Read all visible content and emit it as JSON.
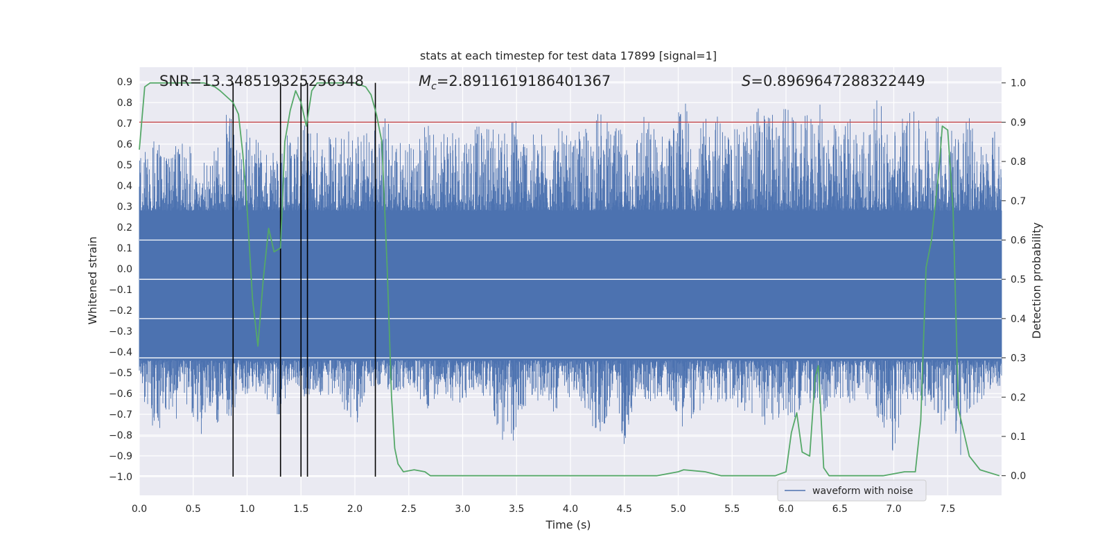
{
  "chart_data": {
    "type": "line",
    "title": "stats at each timestep for test data 17899 [signal=1]",
    "xlabel": "Time (s)",
    "ylabel": "Whitened strain",
    "y2label": "Detection probability",
    "xlim": [
      0.0,
      8.0
    ],
    "ylim": [
      -1.09,
      0.97
    ],
    "y2lim": [
      -0.05,
      1.04
    ],
    "x_ticks": [
      "0.0",
      "0.5",
      "1.0",
      "1.5",
      "2.0",
      "2.5",
      "3.0",
      "3.5",
      "4.0",
      "4.5",
      "5.0",
      "5.5",
      "6.0",
      "6.5",
      "7.0",
      "7.5"
    ],
    "y_ticks": [
      "0.9",
      "0.8",
      "0.7",
      "0.6",
      "0.5",
      "0.4",
      "0.3",
      "0.2",
      "0.1",
      "0.0",
      "−0.1",
      "−0.2",
      "−0.3",
      "−0.4",
      "−0.5",
      "−0.6",
      "−0.7",
      "−0.8",
      "−0.9",
      "−1.0"
    ],
    "y2_ticks": [
      "1.0",
      "0.9",
      "0.8",
      "0.7",
      "0.6",
      "0.5",
      "0.4",
      "0.3",
      "0.2",
      "0.1",
      "0.0"
    ],
    "annotations": {
      "snr": "SNR=13.348519325256348",
      "mc_symbol": "M",
      "mc_sub": "c",
      "mc_value": "=2.8911619186401367",
      "s_symbol": "S",
      "s_value": "=0.8969647288322449"
    },
    "legend": [
      {
        "label": "waveform with noise",
        "color": "#4c72b0"
      }
    ],
    "threshold_line": {
      "y2": 0.9,
      "color": "#c44e52"
    },
    "vertical_markers_x": [
      0.87,
      1.31,
      1.5,
      1.56,
      2.19
    ],
    "strain_envelope": {
      "series_name": "waveform with noise",
      "color": "#4c72b0",
      "dense_upper": 0.28,
      "dense_lower": -0.44,
      "peaks_upper": [
        [
          0.0,
          0.57
        ],
        [
          0.05,
          0.6
        ],
        [
          0.14,
          0.62
        ],
        [
          0.27,
          0.55
        ],
        [
          0.33,
          0.6
        ],
        [
          0.45,
          0.65
        ],
        [
          0.54,
          0.6
        ],
        [
          0.6,
          0.55
        ],
        [
          0.71,
          0.58
        ],
        [
          0.79,
          0.7
        ],
        [
          0.83,
          0.8
        ],
        [
          0.88,
          0.82
        ],
        [
          0.96,
          0.72
        ],
        [
          1.05,
          0.64
        ],
        [
          1.13,
          0.6
        ],
        [
          1.22,
          0.55
        ],
        [
          1.35,
          0.66
        ],
        [
          1.41,
          0.72
        ],
        [
          1.5,
          0.6
        ],
        [
          1.55,
          0.78
        ],
        [
          1.61,
          0.7
        ],
        [
          1.72,
          0.65
        ],
        [
          1.82,
          0.74
        ],
        [
          1.94,
          0.7
        ],
        [
          2.05,
          0.66
        ],
        [
          2.13,
          0.68
        ],
        [
          2.22,
          0.74
        ],
        [
          2.3,
          0.77
        ],
        [
          2.4,
          0.64
        ],
        [
          2.52,
          0.62
        ],
        [
          2.65,
          0.7
        ],
        [
          2.76,
          0.67
        ],
        [
          2.87,
          0.78
        ],
        [
          2.95,
          0.7
        ],
        [
          3.04,
          0.72
        ],
        [
          3.18,
          0.68
        ],
        [
          3.29,
          0.74
        ],
        [
          3.38,
          0.65
        ],
        [
          3.48,
          0.79
        ],
        [
          3.57,
          0.7
        ],
        [
          3.67,
          0.64
        ],
        [
          3.81,
          0.73
        ],
        [
          3.93,
          0.66
        ],
        [
          4.03,
          0.62
        ],
        [
          4.18,
          0.74
        ],
        [
          4.29,
          0.78
        ],
        [
          4.38,
          0.66
        ],
        [
          4.47,
          0.7
        ],
        [
          4.56,
          0.63
        ],
        [
          4.67,
          0.76
        ],
        [
          4.79,
          0.7
        ],
        [
          4.88,
          0.66
        ],
        [
          4.96,
          0.72
        ],
        [
          5.08,
          0.84
        ],
        [
          5.18,
          0.68
        ],
        [
          5.28,
          0.74
        ],
        [
          5.39,
          0.77
        ],
        [
          5.48,
          0.66
        ],
        [
          5.6,
          0.7
        ],
        [
          5.7,
          0.76
        ],
        [
          5.79,
          0.87
        ],
        [
          5.88,
          0.74
        ],
        [
          6.0,
          0.82
        ],
        [
          6.1,
          0.7
        ],
        [
          6.22,
          0.76
        ],
        [
          6.31,
          0.8
        ],
        [
          6.41,
          0.73
        ],
        [
          6.52,
          0.66
        ],
        [
          6.6,
          0.8
        ],
        [
          6.7,
          0.7
        ],
        [
          6.8,
          0.74
        ],
        [
          6.87,
          0.88
        ],
        [
          6.95,
          0.66
        ],
        [
          7.04,
          0.73
        ],
        [
          7.15,
          0.79
        ],
        [
          7.25,
          0.7
        ],
        [
          7.36,
          0.75
        ],
        [
          7.48,
          0.74
        ],
        [
          7.58,
          0.7
        ],
        [
          7.66,
          0.8
        ],
        [
          7.77,
          0.64
        ],
        [
          7.86,
          0.6
        ],
        [
          7.92,
          0.68
        ],
        [
          7.99,
          0.63
        ]
      ],
      "peaks_lower": [
        [
          0.0,
          -0.57
        ],
        [
          0.09,
          -0.71
        ],
        [
          0.16,
          -0.83
        ],
        [
          0.23,
          -0.72
        ],
        [
          0.3,
          -0.81
        ],
        [
          0.4,
          -0.62
        ],
        [
          0.57,
          -0.88
        ],
        [
          0.6,
          -0.72
        ],
        [
          0.73,
          -0.75
        ],
        [
          0.8,
          -0.66
        ],
        [
          0.82,
          -0.86
        ],
        [
          0.89,
          -0.7
        ],
        [
          0.95,
          -0.6
        ],
        [
          1.1,
          -0.62
        ],
        [
          1.22,
          -0.64
        ],
        [
          1.31,
          -0.73
        ],
        [
          1.4,
          -0.55
        ],
        [
          1.52,
          -0.62
        ],
        [
          1.65,
          -0.6
        ],
        [
          1.75,
          -0.66
        ],
        [
          1.85,
          -0.62
        ],
        [
          1.99,
          -0.8
        ],
        [
          2.1,
          -0.6
        ],
        [
          2.22,
          -0.58
        ],
        [
          2.4,
          -0.6
        ],
        [
          2.53,
          -0.58
        ],
        [
          2.65,
          -0.7
        ],
        [
          2.8,
          -0.58
        ],
        [
          2.95,
          -0.66
        ],
        [
          3.1,
          -0.6
        ],
        [
          3.25,
          -0.64
        ],
        [
          3.38,
          -0.89
        ],
        [
          3.5,
          -0.83
        ],
        [
          3.62,
          -0.6
        ],
        [
          3.74,
          -0.66
        ],
        [
          3.85,
          -0.7
        ],
        [
          3.98,
          -0.62
        ],
        [
          4.1,
          -0.66
        ],
        [
          4.27,
          -0.83
        ],
        [
          4.4,
          -0.64
        ],
        [
          4.5,
          -0.85
        ],
        [
          4.62,
          -0.6
        ],
        [
          4.75,
          -0.66
        ],
        [
          4.88,
          -0.6
        ],
        [
          5.04,
          -0.76
        ],
        [
          5.16,
          -0.72
        ],
        [
          5.3,
          -0.64
        ],
        [
          5.42,
          -0.66
        ],
        [
          5.56,
          -0.68
        ],
        [
          5.7,
          -0.73
        ],
        [
          5.84,
          -0.76
        ],
        [
          5.94,
          -0.74
        ],
        [
          6.06,
          -0.73
        ],
        [
          6.18,
          -0.64
        ],
        [
          6.32,
          -0.7
        ],
        [
          6.48,
          -0.64
        ],
        [
          6.62,
          -0.66
        ],
        [
          6.76,
          -0.64
        ],
        [
          6.92,
          -0.78
        ],
        [
          6.98,
          -0.98
        ],
        [
          7.1,
          -0.62
        ],
        [
          7.22,
          -0.66
        ],
        [
          7.34,
          -0.66
        ],
        [
          7.45,
          -0.76
        ],
        [
          7.56,
          -0.8
        ],
        [
          7.63,
          -0.95
        ],
        [
          7.72,
          -0.7
        ],
        [
          7.84,
          -0.62
        ],
        [
          7.93,
          -0.55
        ],
        [
          7.99,
          -0.6
        ]
      ]
    },
    "series": [
      {
        "name": "detection probability",
        "color": "#55a868",
        "axis": "y2",
        "points": [
          [
            0.0,
            0.83
          ],
          [
            0.05,
            0.99
          ],
          [
            0.1,
            1.0
          ],
          [
            0.15,
            1.0
          ],
          [
            0.3,
            1.0
          ],
          [
            0.45,
            1.0
          ],
          [
            0.6,
            1.0
          ],
          [
            0.7,
            0.99
          ],
          [
            0.75,
            0.98
          ],
          [
            0.87,
            0.95
          ],
          [
            0.92,
            0.92
          ],
          [
            0.96,
            0.82
          ],
          [
            1.0,
            0.68
          ],
          [
            1.05,
            0.45
          ],
          [
            1.1,
            0.33
          ],
          [
            1.15,
            0.5
          ],
          [
            1.2,
            0.63
          ],
          [
            1.25,
            0.57
          ],
          [
            1.31,
            0.58
          ],
          [
            1.35,
            0.85
          ],
          [
            1.4,
            0.93
          ],
          [
            1.45,
            0.98
          ],
          [
            1.5,
            0.95
          ],
          [
            1.55,
            0.89
          ],
          [
            1.6,
            0.98
          ],
          [
            1.65,
            1.0
          ],
          [
            1.8,
            1.0
          ],
          [
            2.0,
            1.0
          ],
          [
            2.1,
            0.99
          ],
          [
            2.15,
            0.97
          ],
          [
            2.2,
            0.92
          ],
          [
            2.25,
            0.85
          ],
          [
            2.3,
            0.53
          ],
          [
            2.34,
            0.2
          ],
          [
            2.37,
            0.07
          ],
          [
            2.4,
            0.03
          ],
          [
            2.45,
            0.01
          ],
          [
            2.55,
            0.015
          ],
          [
            2.65,
            0.01
          ],
          [
            2.7,
            0.0
          ],
          [
            3.0,
            0.0
          ],
          [
            3.5,
            0.0
          ],
          [
            4.0,
            0.0
          ],
          [
            4.5,
            0.0
          ],
          [
            4.8,
            0.0
          ],
          [
            5.0,
            0.01
          ],
          [
            5.05,
            0.015
          ],
          [
            5.25,
            0.01
          ],
          [
            5.4,
            0.0
          ],
          [
            5.6,
            0.0
          ],
          [
            5.9,
            0.0
          ],
          [
            6.0,
            0.01
          ],
          [
            6.05,
            0.11
          ],
          [
            6.1,
            0.16
          ],
          [
            6.15,
            0.06
          ],
          [
            6.22,
            0.05
          ],
          [
            6.27,
            0.25
          ],
          [
            6.3,
            0.28
          ],
          [
            6.35,
            0.02
          ],
          [
            6.4,
            0.0
          ],
          [
            6.6,
            0.0
          ],
          [
            6.9,
            0.0
          ],
          [
            7.1,
            0.01
          ],
          [
            7.2,
            0.01
          ],
          [
            7.25,
            0.14
          ],
          [
            7.3,
            0.53
          ],
          [
            7.35,
            0.6
          ],
          [
            7.42,
            0.78
          ],
          [
            7.45,
            0.89
          ],
          [
            7.5,
            0.88
          ],
          [
            7.55,
            0.68
          ],
          [
            7.6,
            0.17
          ],
          [
            7.7,
            0.05
          ],
          [
            7.8,
            0.015
          ],
          [
            7.98,
            0.0
          ]
        ]
      }
    ]
  }
}
